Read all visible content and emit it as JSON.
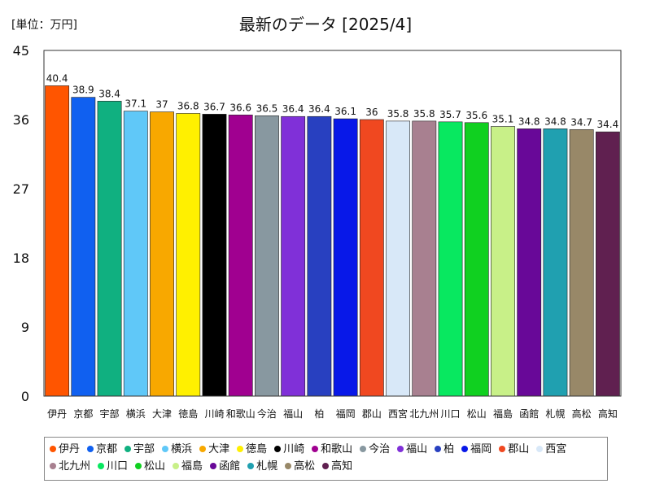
{
  "unit_label": "[単位：万円]",
  "chart_data": {
    "type": "bar",
    "title": "最新のデータ [2025/4]",
    "xlabel": "",
    "ylabel": "",
    "ylim": [
      0,
      45
    ],
    "yticks": [
      0,
      9,
      18,
      27,
      36,
      45
    ],
    "grid": false,
    "legend_position": "bottom",
    "categories": [
      "伊丹",
      "京都",
      "宇部",
      "横浜",
      "大津",
      "徳島",
      "川崎",
      "和歌山",
      "今治",
      "福山",
      "柏",
      "福岡",
      "郡山",
      "西宮",
      "北九州",
      "川口",
      "松山",
      "福島",
      "函館",
      "札幌",
      "高松",
      "高知"
    ],
    "values": [
      40.4,
      38.9,
      38.4,
      37.1,
      37,
      36.8,
      36.7,
      36.6,
      36.5,
      36.4,
      36.4,
      36.1,
      36,
      35.8,
      35.8,
      35.7,
      35.6,
      35.1,
      34.8,
      34.8,
      34.7,
      34.4
    ],
    "colors": [
      "#FF5500",
      "#1060F0",
      "#10B080",
      "#60C8F8",
      "#F8A800",
      "#FFF000",
      "#000000",
      "#A00090",
      "#8898A0",
      "#8030D8",
      "#2840C0",
      "#0818E8",
      "#F04820",
      "#D8E8F8",
      "#A88090",
      "#08E860",
      "#10D020",
      "#C8F088",
      "#680898",
      "#20A0B0",
      "#988868",
      "#602050"
    ]
  }
}
